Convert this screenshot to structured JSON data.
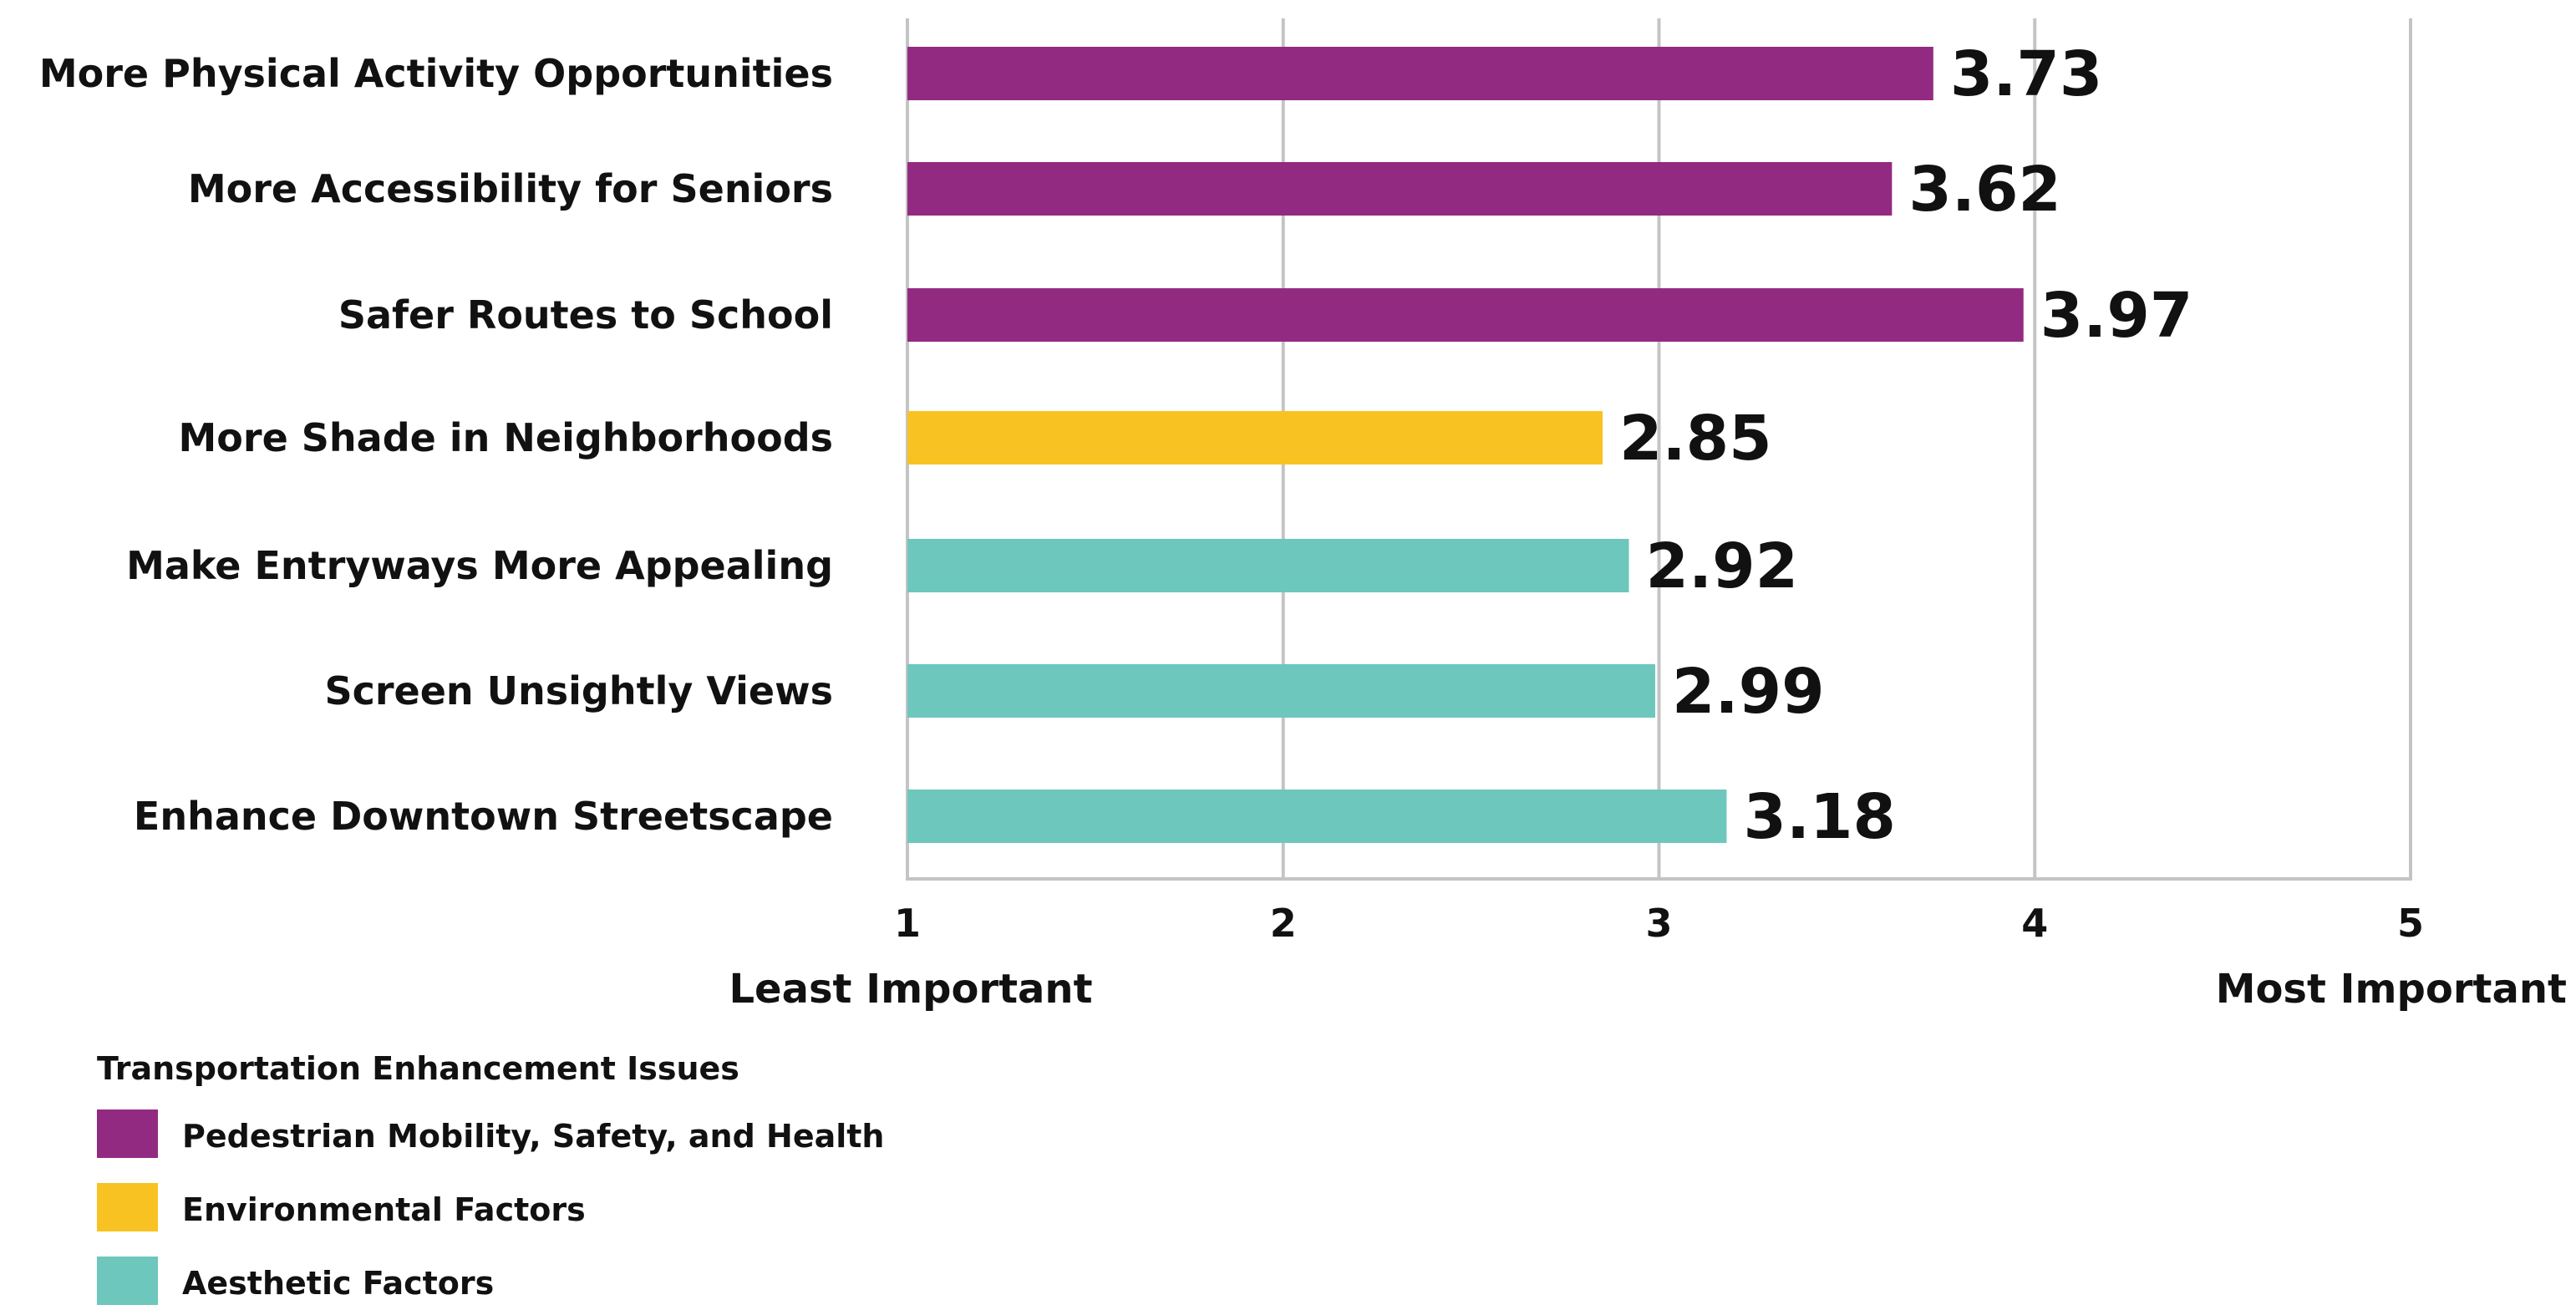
{
  "chart_data": {
    "type": "bar",
    "orientation": "horizontal",
    "categories": [
      "More Physical Activity Opportunities",
      "More Accessibility for Seniors",
      "Safer Routes to School",
      "More Shade in Neighborhoods",
      "Make Entryways More Appealing",
      "Screen Unsightly Views",
      "Enhance Downtown Streetscape"
    ],
    "values": [
      3.73,
      3.62,
      3.97,
      2.85,
      2.92,
      2.99,
      3.18
    ],
    "value_labels": [
      "3.73",
      "3.62",
      "3.97",
      "2.85",
      "2.92",
      "2.99",
      "3.18"
    ],
    "groups": [
      "Pedestrian Mobility, Safety, and Health",
      "Pedestrian Mobility, Safety, and Health",
      "Pedestrian Mobility, Safety, and Health",
      "Environmental Factors",
      "Aesthetic Factors",
      "Aesthetic Factors",
      "Aesthetic Factors"
    ],
    "xlim": [
      1,
      5
    ],
    "xticks": [
      "1",
      "2",
      "3",
      "4",
      "5"
    ],
    "axis_end_labels": {
      "left": "Least Important",
      "right": "Most Important"
    },
    "grid": true,
    "legend": {
      "title": "Transportation Enhancement Issues",
      "position": "bottom-left",
      "items": [
        {
          "label": "Pedestrian Mobility, Safety, and Health",
          "color": "#932a82"
        },
        {
          "label": "Environmental Factors",
          "color": "#f8c322"
        },
        {
          "label": "Aesthetic Factors",
          "color": "#6dc7bc"
        }
      ]
    },
    "colors": {
      "Pedestrian Mobility, Safety, and Health": "#932a82",
      "Environmental Factors": "#f8c322",
      "Aesthetic Factors": "#6dc7bc"
    }
  }
}
